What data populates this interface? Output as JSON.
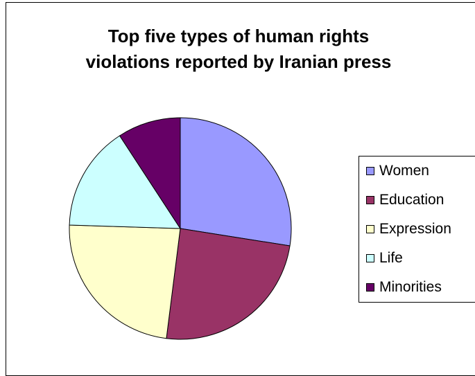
{
  "chart_data": {
    "type": "pie",
    "title": "Top five types of human rights violations reported by Iranian press",
    "title_lines": [
      "Top five types of human rights",
      "violations reported by Iranian press"
    ],
    "categories": [
      "Women",
      "Education",
      "Expression",
      "Life",
      "Minorities"
    ],
    "values": [
      27.5,
      24.5,
      23.5,
      15.3,
      9.2
    ],
    "colors": [
      "#9999FF",
      "#993366",
      "#FFFFCC",
      "#CCFFFF",
      "#660066"
    ],
    "start_angle_deg": 0,
    "direction": "clockwise",
    "legend_position": "right"
  }
}
